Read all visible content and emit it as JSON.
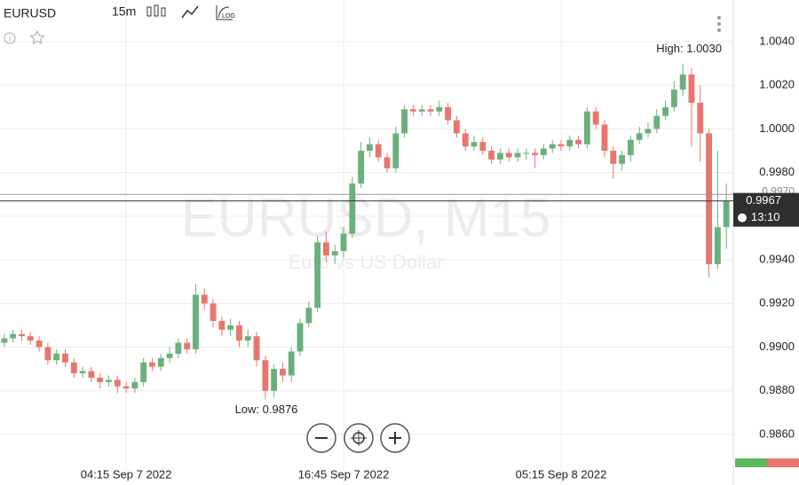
{
  "toolbar": {
    "symbol": "EURUSD",
    "timeframe": "15m"
  },
  "chart_data": {
    "type": "candlestick",
    "watermark": "EURUSD, M15",
    "watermark_subtitle": "Euro vs US Dollar",
    "annotations": [
      {
        "text": "High: 1.0030",
        "value": 1.003
      },
      {
        "text": "Low: 0.9876",
        "value": 0.9876
      }
    ],
    "up_color": "#6bb07c",
    "down_color": "#e8766e",
    "open": [
      0.9902,
      0.9904,
      0.9906,
      0.9905,
      0.9903,
      0.99,
      0.9894,
      0.9897,
      0.9893,
      0.9888,
      0.9889,
      0.9886,
      0.9884,
      0.9885,
      0.9882,
      0.9881,
      0.9884,
      0.9893,
      0.9891,
      0.9895,
      0.9897,
      0.9902,
      0.9899,
      0.9924,
      0.992,
      0.9912,
      0.9908,
      0.991,
      0.9903,
      0.9905,
      0.9894,
      0.988,
      0.989,
      0.9887,
      0.9898,
      0.9911,
      0.9918,
      0.9948,
      0.9942,
      0.9944,
      0.9952,
      0.9975,
      0.999,
      0.9993,
      0.9987,
      0.9982,
      0.9998,
      1.0009,
      1.0008,
      1.0009,
      1.0008,
      1.001,
      1.0004,
      0.9998,
      0.9992,
      0.9994,
      0.999,
      0.9986,
      0.9989,
      0.9987,
      0.9989,
      0.9989,
      0.9988,
      0.9991,
      0.9993,
      0.9992,
      0.9995,
      0.9993,
      1.0008,
      1.0002,
      0.999,
      0.9984,
      0.9988,
      0.9995,
      0.9998,
      1.0,
      1.0006,
      1.001,
      1.0018,
      1.0025,
      1.0012,
      0.9998,
      0.9938,
      0.9955
    ],
    "high": [
      0.9906,
      0.9908,
      0.9908,
      0.9907,
      0.9905,
      0.9902,
      0.9899,
      0.9899,
      0.9895,
      0.9891,
      0.9891,
      0.9888,
      0.9887,
      0.9887,
      0.9884,
      0.9886,
      0.9895,
      0.9895,
      0.9897,
      0.99,
      0.9904,
      0.9904,
      0.9929,
      0.9927,
      0.9922,
      0.9914,
      0.9913,
      0.9912,
      0.9908,
      0.9907,
      0.9896,
      0.9892,
      0.9893,
      0.99,
      0.9913,
      0.9921,
      0.9951,
      0.9953,
      0.9947,
      0.9955,
      0.9978,
      0.9994,
      0.9996,
      0.9995,
      0.9989,
      1.0001,
      1.0011,
      1.0011,
      1.0011,
      1.0011,
      1.0013,
      1.0012,
      1.0006,
      1.0,
      0.9997,
      0.9996,
      0.9992,
      0.9991,
      0.9991,
      0.9991,
      0.9991,
      0.9991,
      0.9993,
      0.9995,
      0.9995,
      0.9997,
      0.9997,
      1.001,
      1.001,
      1.0004,
      0.9992,
      0.999,
      0.9997,
      1.0001,
      1.0003,
      1.0009,
      1.0013,
      1.0022,
      1.003,
      1.0028,
      1.002,
      1.0,
      0.999,
      0.9975
    ],
    "low": [
      0.99,
      0.9902,
      0.9903,
      0.9901,
      0.9898,
      0.9892,
      0.9892,
      0.9891,
      0.9886,
      0.9886,
      0.9884,
      0.9881,
      0.9882,
      0.9879,
      0.9879,
      0.9879,
      0.9882,
      0.9889,
      0.9889,
      0.9893,
      0.9895,
      0.9897,
      0.9897,
      0.9917,
      0.9909,
      0.9905,
      0.9905,
      0.99,
      0.99,
      0.9891,
      0.9876,
      0.9877,
      0.9884,
      0.9884,
      0.9896,
      0.9909,
      0.9916,
      0.9939,
      0.9938,
      0.9941,
      0.995,
      0.9973,
      0.9987,
      0.9985,
      0.998,
      0.998,
      0.9996,
      1.0006,
      1.0006,
      1.0006,
      1.0006,
      1.0002,
      0.9996,
      0.999,
      0.999,
      0.9988,
      0.9984,
      0.9984,
      0.9985,
      0.9985,
      0.9986,
      0.9982,
      0.9986,
      0.9989,
      0.999,
      0.999,
      0.9991,
      0.9991,
      1.0,
      0.9987,
      0.9977,
      0.9981,
      0.9985,
      0.9993,
      0.9996,
      0.9998,
      1.0004,
      1.0008,
      1.0015,
      0.9992,
      0.9985,
      0.9932,
      0.9936,
      0.9945
    ],
    "close": [
      0.9904,
      0.9906,
      0.9905,
      0.9903,
      0.99,
      0.9894,
      0.9897,
      0.9893,
      0.9888,
      0.9889,
      0.9886,
      0.9884,
      0.9885,
      0.9882,
      0.9881,
      0.9884,
      0.9893,
      0.9891,
      0.9895,
      0.9897,
      0.9902,
      0.9899,
      0.9924,
      0.992,
      0.9912,
      0.9908,
      0.991,
      0.9903,
      0.9905,
      0.9894,
      0.988,
      0.989,
      0.9887,
      0.9898,
      0.9911,
      0.9918,
      0.9948,
      0.9942,
      0.9944,
      0.9952,
      0.9975,
      0.999,
      0.9993,
      0.9987,
      0.9982,
      0.9998,
      1.0009,
      1.0008,
      1.0009,
      1.0008,
      1.001,
      1.0004,
      0.9998,
      0.9992,
      0.9994,
      0.999,
      0.9986,
      0.9989,
      0.9987,
      0.9989,
      0.9989,
      0.9988,
      0.9991,
      0.9993,
      0.9992,
      0.9995,
      0.9993,
      1.0008,
      1.0002,
      0.999,
      0.9984,
      0.9988,
      0.9995,
      0.9998,
      1.0,
      1.0006,
      1.001,
      1.0018,
      1.0025,
      1.0012,
      0.9998,
      0.9938,
      0.9955,
      0.9967
    ],
    "xlim": [
      -0.5,
      83.8
    ],
    "xticks": [
      {
        "value": 14,
        "label": "04:15 Sep 7 2022"
      },
      {
        "value": 39,
        "label": "16:45 Sep 7 2022"
      },
      {
        "value": 64,
        "label": "05:15 Sep 8 2022"
      }
    ],
    "ylim": [
      0.98368,
      1.00591
    ],
    "yticks": [
      {
        "value": 0.986,
        "label": "0.9860"
      },
      {
        "value": 0.988,
        "label": "0.9880"
      },
      {
        "value": 0.99,
        "label": "0.9900"
      },
      {
        "value": 0.992,
        "label": "0.9920"
      },
      {
        "value": 0.994,
        "label": "0.9940"
      },
      {
        "value": 0.996,
        "label": "0.9960"
      },
      {
        "value": 0.998,
        "label": "0.9980"
      },
      {
        "value": 1.0,
        "label": "1.0000"
      },
      {
        "value": 1.002,
        "label": "1.0020"
      },
      {
        "value": 1.004,
        "label": "1.0040"
      }
    ],
    "grid": true,
    "reference_price": {
      "value": 0.997,
      "label": "0.9970"
    },
    "current_price": {
      "value": 0.9967,
      "label": "0.9967"
    },
    "countdown": "13:10"
  }
}
